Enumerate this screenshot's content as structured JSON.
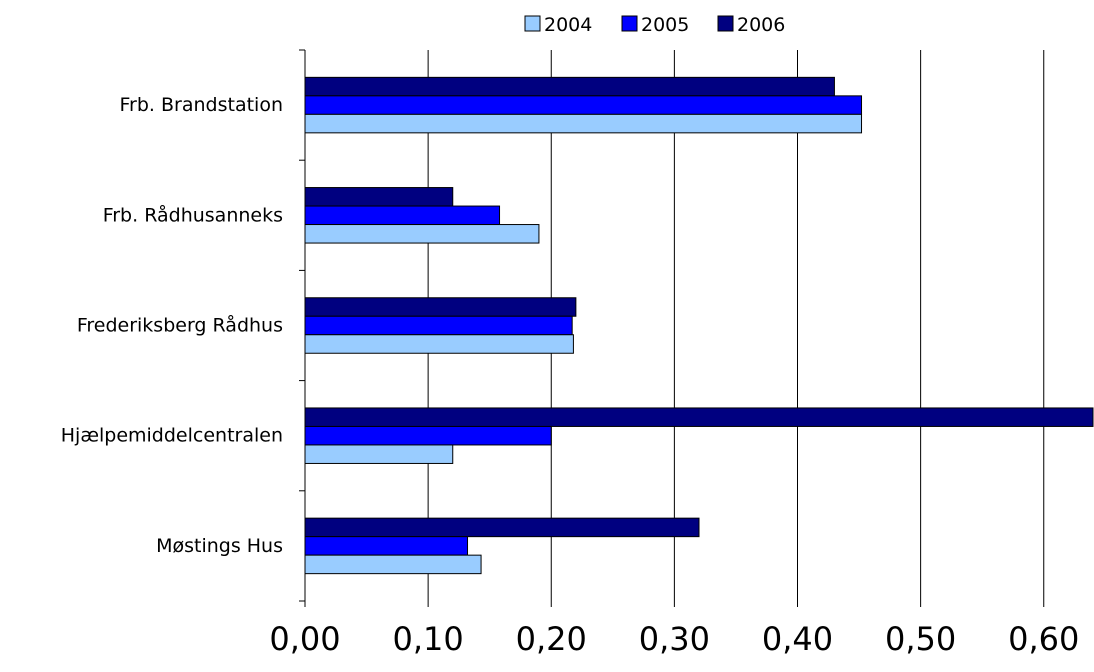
{
  "chart_data": {
    "type": "bar",
    "orientation": "horizontal",
    "title": "",
    "xlabel": "",
    "ylabel": "",
    "categories": [
      "Møstings Hus",
      "Hjælpemiddelcentralen",
      "Frederiksberg Rådhus",
      "Frb. Rådhusanneks",
      "Frb. Brandstation"
    ],
    "series": [
      {
        "name": "2004",
        "color": "#99ccff",
        "values": [
          0.143,
          0.12,
          0.218,
          0.19,
          0.452
        ]
      },
      {
        "name": "2005",
        "color": "#0000ff",
        "values": [
          0.132,
          0.2,
          0.217,
          0.158,
          0.452
        ]
      },
      {
        "name": "2006",
        "color": "#000080",
        "values": [
          0.32,
          0.64,
          0.22,
          0.12,
          0.43
        ]
      }
    ],
    "xlim": [
      0,
      0.64
    ],
    "x_ticks": [
      "0,00",
      "0,10",
      "0,20",
      "0,30",
      "0,40",
      "0,50",
      "0,60"
    ],
    "grid": "vertical",
    "legend_position": "top-center"
  }
}
